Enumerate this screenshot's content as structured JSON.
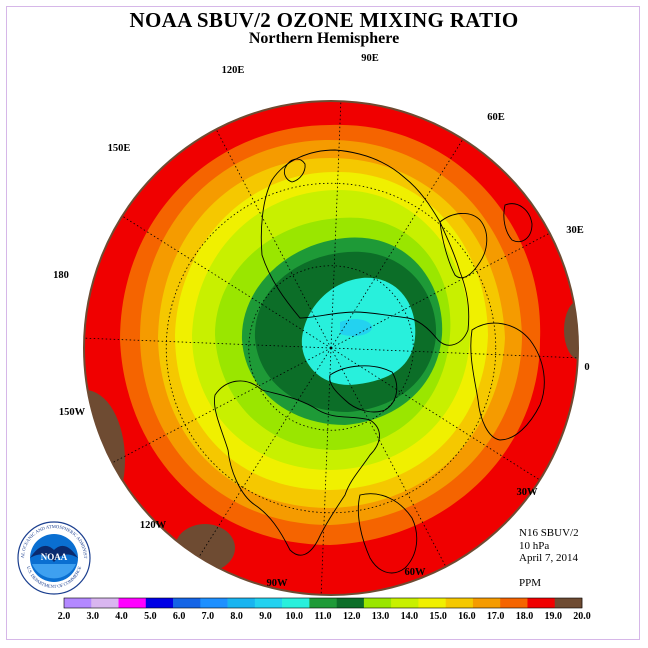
{
  "title": "NOAA SBUV/2 OZONE MIXING RATIO",
  "subtitle": "Northern Hemisphere",
  "longitude_labels": {
    "lon_90e": "90E",
    "lon_60e": "60E",
    "lon_120e": "120E",
    "lon_150e": "150E",
    "lon_30e": "30E",
    "lon_180": "180",
    "lon_0": "0",
    "lon_150w": "150W",
    "lon_30w": "30W",
    "lon_120w": "120W",
    "lon_60w": "60W",
    "lon_90w": "90W"
  },
  "info": {
    "instrument": "N16 SBUV/2",
    "level": "10 hPa",
    "date": "April 7, 2014",
    "units": "PPM"
  },
  "logo": {
    "text": "NOAA",
    "ring_text": "NATIONAL OCEANIC AND ATMOSPHERIC ADMINISTRATION",
    "ring_text_bottom": "U.S. DEPARTMENT OF COMMERCE"
  },
  "colorbar": {
    "labels": [
      "2.0",
      "3.0",
      "4.0",
      "5.0",
      "6.0",
      "7.0",
      "8.0",
      "9.0",
      "10.0",
      "11.0",
      "12.0",
      "13.0",
      "14.0",
      "15.0",
      "16.0",
      "17.0",
      "18.0",
      "19.0",
      "20.0"
    ],
    "colors": [
      "#b388ff",
      "#d9b6f0",
      "#ff00ff",
      "#0000e6",
      "#1464e6",
      "#1e90ff",
      "#19b4f0",
      "#23d2f0",
      "#28f0dc",
      "#1e9a37",
      "#0c6e28",
      "#9ae600",
      "#c8f000",
      "#f0f000",
      "#f5c800",
      "#f59b00",
      "#f56400",
      "#f00000",
      "#6e4b32"
    ]
  },
  "map": {
    "levels_inner_to_outer": [
      "#28f0dc",
      "#0c6e28",
      "#1e9a37",
      "#9ae600",
      "#c8f000",
      "#f0f000",
      "#f5c800",
      "#f59b00",
      "#f56400",
      "#f00000"
    ],
    "boundary_color": "#6e4b32",
    "cells_above_20": "#6e4b32"
  }
}
